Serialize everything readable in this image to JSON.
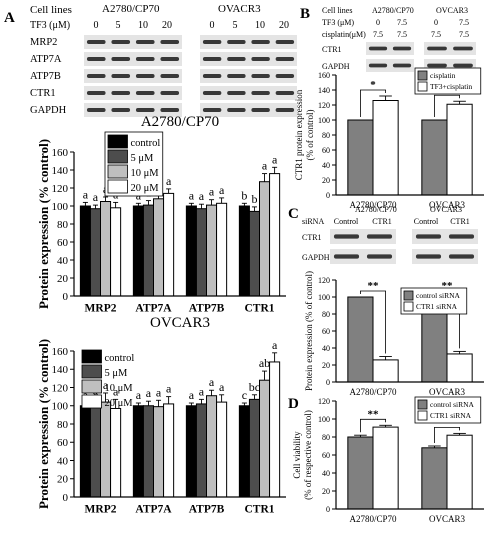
{
  "panel_labels": {
    "A": "A",
    "B": "B",
    "C": "C",
    "D": "D"
  },
  "colors": {
    "black": "#000000",
    "dark_gray": "#4d4d4d",
    "light_gray": "#bfbfbf",
    "white": "#ffffff",
    "mid_gray": "#808080",
    "blot_band": "#1a1a1a",
    "blot_bg": "#e4e4e4"
  },
  "panel_a": {
    "blot": {
      "row_label_header": "Cell lines",
      "tf3_label": "TF3 (μM)",
      "cell_lines": [
        "A2780/CP70",
        "OVACR3"
      ],
      "doses": [
        "0",
        "5",
        "10",
        "20"
      ],
      "proteins": [
        "MRP2",
        "ATP7A",
        "ATP7B",
        "CTR1",
        "GAPDH"
      ]
    }
  },
  "panel_b": {
    "blot": {
      "row1": "Cell lines",
      "row2": "TF3 (μM)",
      "row3": "cisplatin(μM)",
      "cell_lines": [
        "A2780/CP70",
        "OVCAR3"
      ],
      "tf3_values": [
        "0",
        "7.5",
        "0",
        "7.5"
      ],
      "cis_values": [
        "7.5",
        "7.5",
        "7.5",
        "7.5"
      ],
      "proteins": [
        "CTR1",
        "GAPDH"
      ]
    }
  },
  "panel_c": {
    "blot": {
      "sirna_label": "siRNA",
      "cell_lines": [
        "A2780/CP70",
        "OVCAR3"
      ],
      "conditions": [
        "Control",
        "CTR1",
        "Control",
        "CTR1"
      ],
      "proteins": [
        "CTR1",
        "GAPDH"
      ]
    }
  },
  "chart_data": [
    {
      "id": "a_top",
      "type": "bar",
      "title": "A2780/CP70",
      "ylabel": "Protein expression (% control)",
      "xlabel": "",
      "categories": [
        "MRP2",
        "ATP7A",
        "ATP7B",
        "CTR1"
      ],
      "ylim": [
        0,
        160
      ],
      "yticks": [
        0,
        20,
        40,
        60,
        80,
        100,
        120,
        140,
        160
      ],
      "legend": "top-left",
      "series": [
        {
          "name": "control",
          "values": [
            100,
            100,
            100,
            100
          ],
          "errors": [
            4,
            3,
            3,
            3
          ],
          "labels": [
            "a",
            "a",
            "a",
            "b"
          ]
        },
        {
          "name": "5 μM",
          "values": [
            97,
            101,
            97,
            94
          ],
          "errors": [
            4,
            5,
            5,
            5
          ],
          "labels": [
            "a",
            "a",
            "a",
            "b"
          ]
        },
        {
          "name": "10 μM",
          "values": [
            105,
            108,
            101,
            127
          ],
          "errors": [
            5,
            5,
            6,
            9
          ],
          "labels": [
            "a",
            "a",
            "a",
            "a"
          ]
        },
        {
          "name": "20 μM",
          "values": [
            98,
            114,
            103,
            136
          ],
          "errors": [
            6,
            5,
            6,
            7
          ],
          "labels": [
            "a",
            "a",
            "a",
            "a"
          ]
        }
      ]
    },
    {
      "id": "a_bottom",
      "type": "bar",
      "title": "OVCAR3",
      "ylabel": "Protein expression (% control)",
      "xlabel": "",
      "categories": [
        "MRP2",
        "ATP7A",
        "ATP7B",
        "CTR1"
      ],
      "ylim": [
        0,
        160
      ],
      "yticks": [
        0,
        20,
        40,
        60,
        80,
        100,
        120,
        140,
        160
      ],
      "legend": "top-left",
      "series": [
        {
          "name": "control",
          "values": [
            100,
            100,
            100,
            100
          ],
          "errors": [
            3,
            3,
            3,
            3
          ],
          "labels": [
            "a",
            "a",
            "a",
            "c"
          ]
        },
        {
          "name": "5 μM",
          "values": [
            102,
            100,
            102,
            107
          ],
          "errors": [
            6,
            5,
            5,
            5
          ],
          "labels": [
            "a",
            "a",
            "a",
            "bc"
          ]
        },
        {
          "name": "10 μM",
          "values": [
            104,
            99,
            111,
            128
          ],
          "errors": [
            10,
            7,
            6,
            10
          ],
          "labels": [
            "a",
            "a",
            "a",
            "ab"
          ]
        },
        {
          "name": "20 μM",
          "values": [
            97,
            102,
            104,
            148
          ],
          "errors": [
            10,
            8,
            8,
            10
          ],
          "labels": [
            "a",
            "a",
            "a",
            "a"
          ]
        }
      ]
    },
    {
      "id": "b",
      "type": "bar",
      "title": "",
      "ylabel": "CTR1 protein expression (% of control)",
      "xlabel": "",
      "categories": [
        "A2780/CP70",
        "OVCAR3"
      ],
      "ylim": [
        0,
        160
      ],
      "yticks": [
        0,
        20,
        40,
        60,
        80,
        100,
        120,
        140,
        160
      ],
      "legend": "top-right",
      "significance": [
        "*",
        "*"
      ],
      "series": [
        {
          "name": "cisplatin",
          "values": [
            100,
            100
          ],
          "errors": [
            0,
            0
          ]
        },
        {
          "name": "TF3+cisplatin",
          "values": [
            126,
            121
          ],
          "errors": [
            6,
            4
          ]
        }
      ]
    },
    {
      "id": "c",
      "type": "bar",
      "title": "",
      "ylabel": "Protein expression (% of control)",
      "xlabel": "",
      "categories": [
        "A2780/CP70",
        "OVCAR3"
      ],
      "ylim": [
        0,
        120
      ],
      "yticks": [
        0,
        20,
        40,
        60,
        80,
        100,
        120
      ],
      "legend": "top-right",
      "significance": [
        "**",
        "**"
      ],
      "series": [
        {
          "name": "control siRNA",
          "values": [
            100,
            100
          ],
          "errors": [
            0,
            0
          ]
        },
        {
          "name": "CTR1 siRNA",
          "values": [
            26,
            33
          ],
          "errors": [
            4,
            3
          ]
        }
      ]
    },
    {
      "id": "d",
      "type": "bar",
      "title": "",
      "ylabel": "Cell viability (% of respective control)",
      "xlabel": "",
      "categories": [
        "A2780/CP70",
        "OVCAR3"
      ],
      "ylim": [
        0,
        120
      ],
      "yticks": [
        0,
        20,
        40,
        60,
        80,
        100,
        120
      ],
      "legend": "top-right",
      "significance": [
        "**",
        "**"
      ],
      "series": [
        {
          "name": "control siRNA",
          "values": [
            80,
            68
          ],
          "errors": [
            2,
            2
          ]
        },
        {
          "name": "CTR1 siRNA",
          "values": [
            91,
            82
          ],
          "errors": [
            2,
            2
          ]
        }
      ]
    }
  ]
}
